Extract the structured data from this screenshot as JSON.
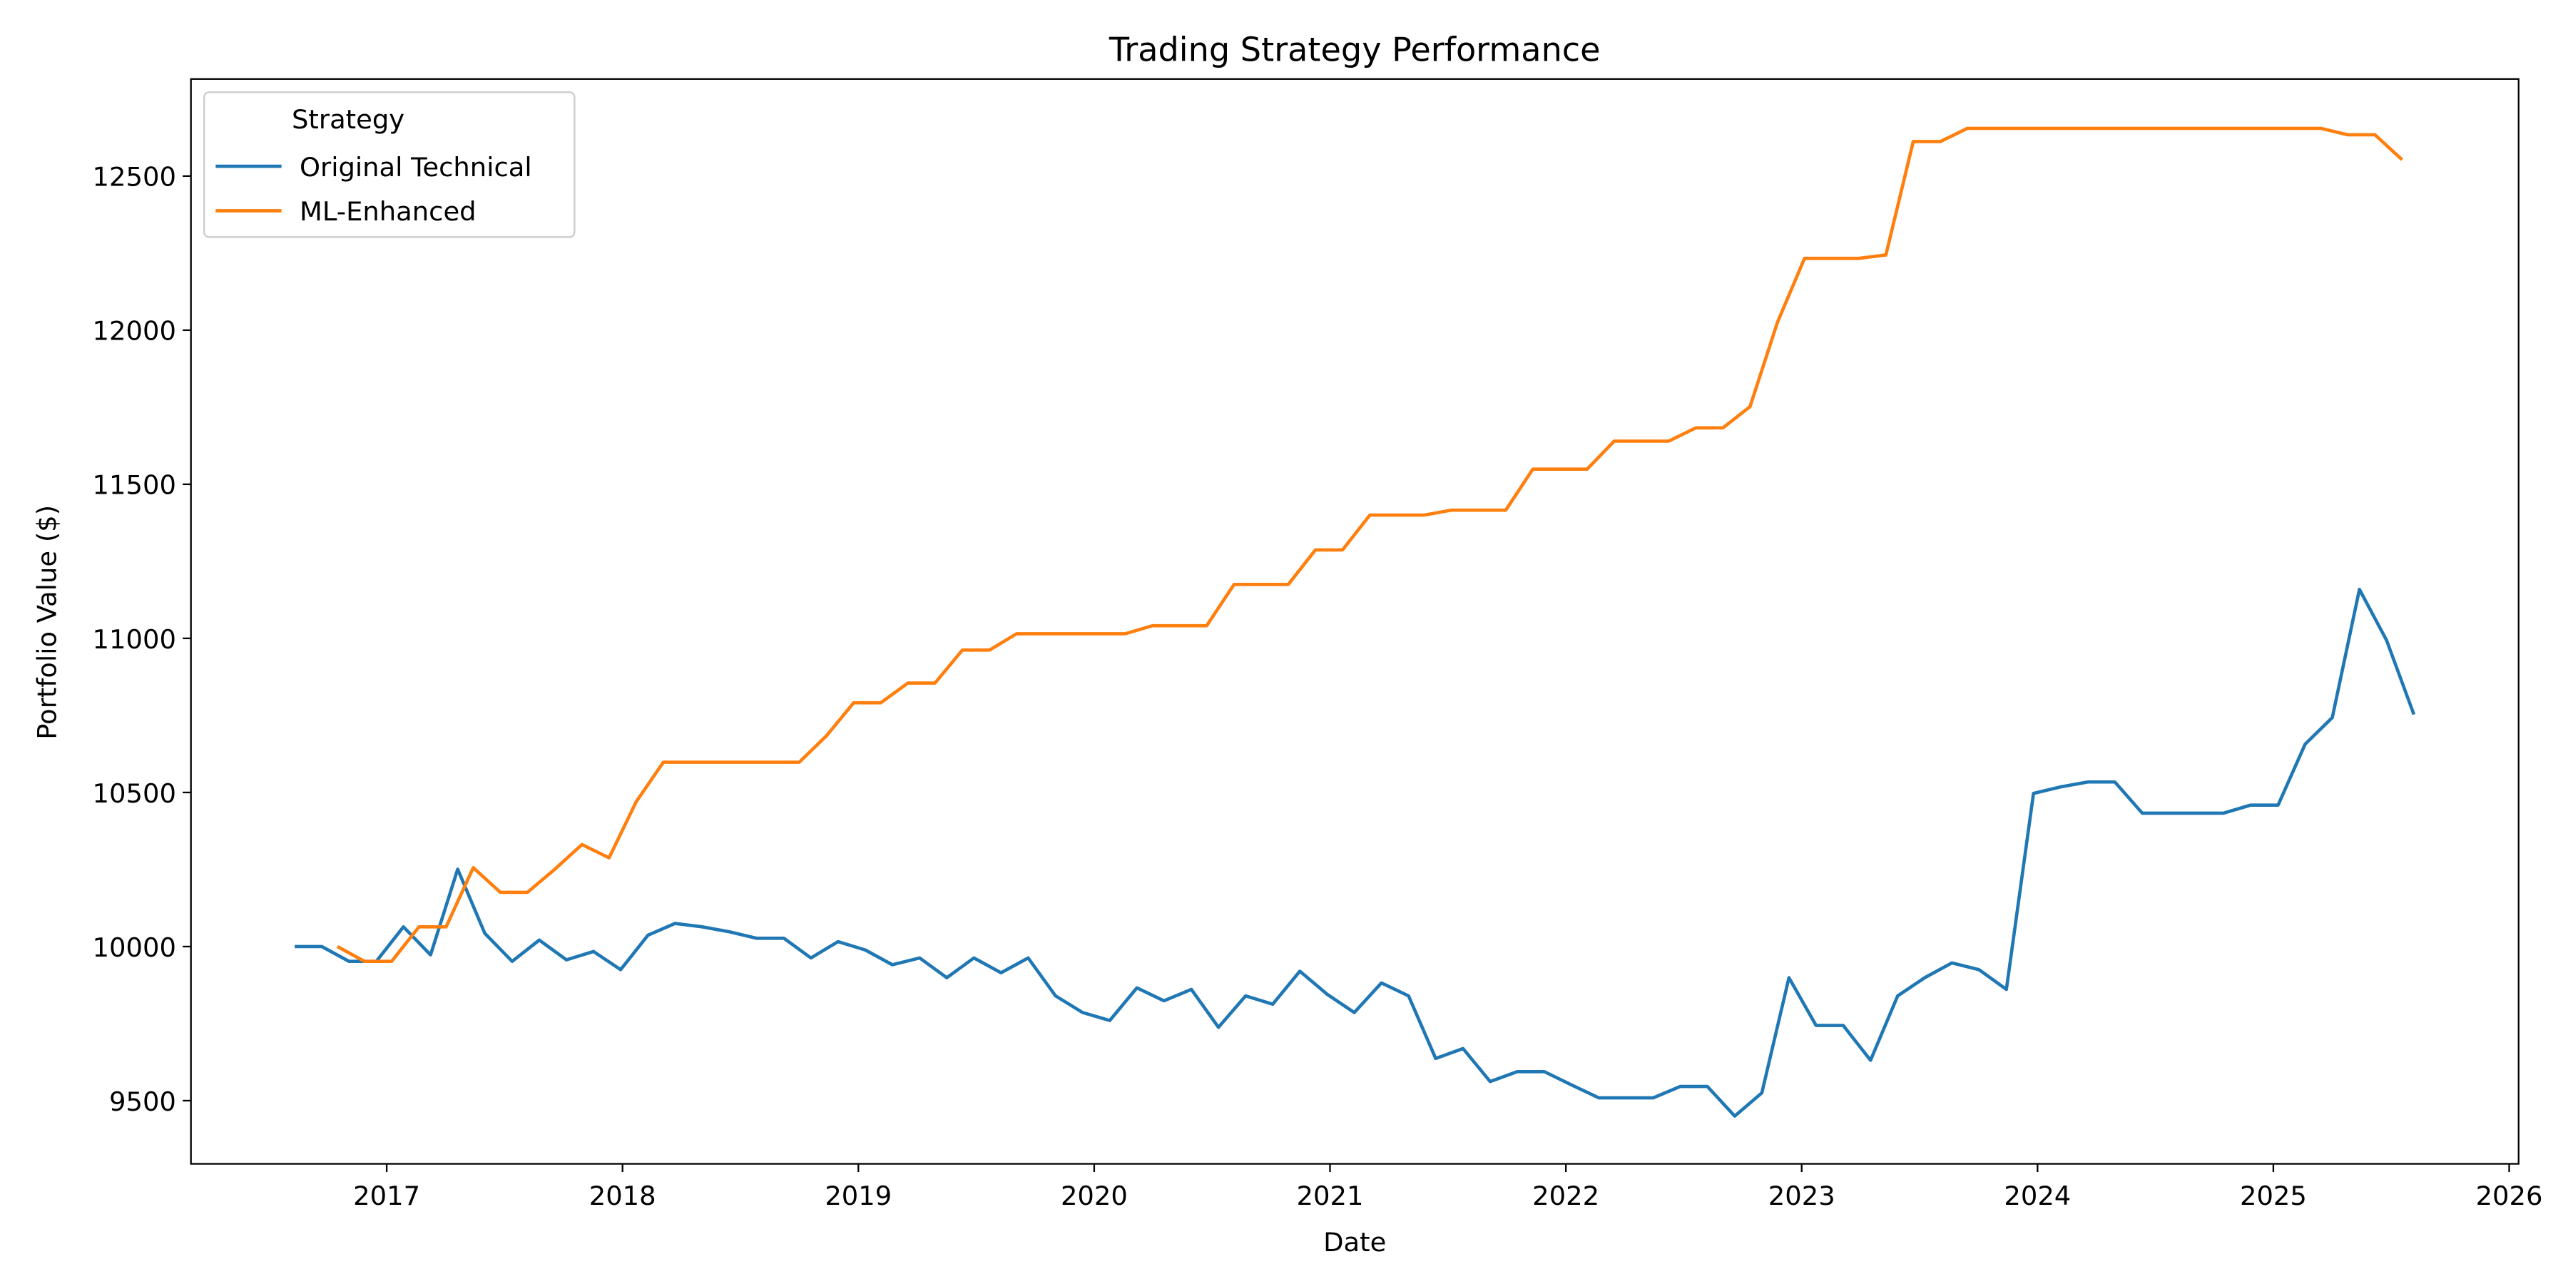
{
  "chart_data": {
    "type": "line",
    "title": "Trading Strategy Performance",
    "x_label": "Date",
    "y_label": "Portfolio Value ($)",
    "xlim": [
      2016.17,
      2026.04
    ],
    "xticks": [
      2017,
      2018,
      2019,
      2020,
      2021,
      2022,
      2023,
      2024,
      2025,
      2026
    ],
    "ylim": [
      9295,
      12815
    ],
    "yticks": [
      9500,
      10000,
      10500,
      11000,
      11500,
      12000,
      12500
    ],
    "grid": false,
    "legend_title": "Strategy",
    "legend_position": "upper left",
    "series": [
      {
        "name": "Original Technical",
        "color": "#1f77b4",
        "x": [
          2016.61,
          2016.725,
          2016.84,
          2016.956,
          2017.071,
          2017.186,
          2017.301,
          2017.416,
          2017.532,
          2017.647,
          2017.762,
          2017.877,
          2017.992,
          2018.108,
          2018.223,
          2018.338,
          2018.453,
          2018.568,
          2018.684,
          2018.799,
          2018.914,
          2019.029,
          2019.144,
          2019.26,
          2019.375,
          2019.49,
          2019.605,
          2019.72,
          2019.836,
          2019.951,
          2020.066,
          2020.181,
          2020.296,
          2020.412,
          2020.527,
          2020.642,
          2020.757,
          2020.872,
          2020.988,
          2021.103,
          2021.218,
          2021.333,
          2021.448,
          2021.564,
          2021.679,
          2021.794,
          2021.909,
          2022.024,
          2022.14,
          2022.255,
          2022.37,
          2022.485,
          2022.6,
          2022.716,
          2022.831,
          2022.946,
          2023.061,
          2023.176,
          2023.292,
          2023.407,
          2023.522,
          2023.637,
          2023.752,
          2023.868,
          2023.983,
          2024.098,
          2024.213,
          2024.328,
          2024.444,
          2024.559,
          2024.674,
          2024.789,
          2024.904,
          2025.02,
          2025.135,
          2025.25,
          2025.365,
          2025.48,
          2025.596
        ],
        "values": [
          10000,
          10000,
          9952,
          9952,
          10064,
          9973,
          10251,
          10043,
          9952,
          10021,
          9957,
          9984,
          9925,
          10037,
          10075,
          10064,
          10048,
          10027,
          10027,
          9963,
          10016,
          9989,
          9941,
          9963,
          9899,
          9963,
          9915,
          9963,
          9840,
          9786,
          9760,
          9866,
          9824,
          9861,
          9738,
          9840,
          9813,
          9920,
          9845,
          9786,
          9882,
          9840,
          9637,
          9669,
          9562,
          9594,
          9594,
          9551,
          9509,
          9509,
          9509,
          9546,
          9546,
          9450,
          9525,
          9899,
          9744,
          9744,
          9631,
          9840,
          9899,
          9947,
          9925,
          9861,
          10497,
          10518,
          10534,
          10534,
          10433,
          10433,
          10433,
          10433,
          10459,
          10459,
          10657,
          10743,
          11159,
          10994,
          10753
        ]
      },
      {
        "name": "ML-Enhanced",
        "color": "#ff7f0e",
        "x": [
          2016.791,
          2016.906,
          2017.021,
          2017.137,
          2017.252,
          2017.367,
          2017.482,
          2017.597,
          2017.713,
          2017.828,
          2017.943,
          2018.058,
          2018.173,
          2018.289,
          2018.404,
          2018.519,
          2018.634,
          2018.749,
          2018.865,
          2018.98,
          2019.095,
          2019.21,
          2019.325,
          2019.441,
          2019.556,
          2019.671,
          2019.786,
          2019.901,
          2020.017,
          2020.132,
          2020.247,
          2020.362,
          2020.477,
          2020.593,
          2020.708,
          2020.823,
          2020.938,
          2021.053,
          2021.169,
          2021.284,
          2021.399,
          2021.514,
          2021.629,
          2021.745,
          2021.86,
          2021.975,
          2022.09,
          2022.205,
          2022.321,
          2022.436,
          2022.551,
          2022.666,
          2022.781,
          2022.897,
          2023.012,
          2023.127,
          2023.242,
          2023.357,
          2023.473,
          2023.588,
          2023.703,
          2023.818,
          2023.933,
          2024.049,
          2024.164,
          2024.279,
          2024.394,
          2024.509,
          2024.625,
          2024.74,
          2024.855,
          2024.97,
          2025.085,
          2025.201,
          2025.316,
          2025.431,
          2025.546
        ],
        "values": [
          10000,
          9952,
          9952,
          10064,
          10064,
          10256,
          10176,
          10176,
          10251,
          10331,
          10288,
          10470,
          10598,
          10598,
          10598,
          10598,
          10598,
          10598,
          10684,
          10791,
          10791,
          10855,
          10855,
          10962,
          10962,
          11015,
          11015,
          11015,
          11015,
          11015,
          11041,
          11041,
          11041,
          11175,
          11175,
          11175,
          11287,
          11287,
          11400,
          11400,
          11400,
          11416,
          11416,
          11416,
          11549,
          11549,
          11549,
          11640,
          11640,
          11640,
          11683,
          11683,
          11752,
          12025,
          12233,
          12233,
          12233,
          12244,
          12612,
          12612,
          12655,
          12655,
          12655,
          12655,
          12655,
          12655,
          12655,
          12655,
          12655,
          12655,
          12655,
          12655,
          12655,
          12655,
          12634,
          12634,
          12553
        ]
      }
    ]
  }
}
